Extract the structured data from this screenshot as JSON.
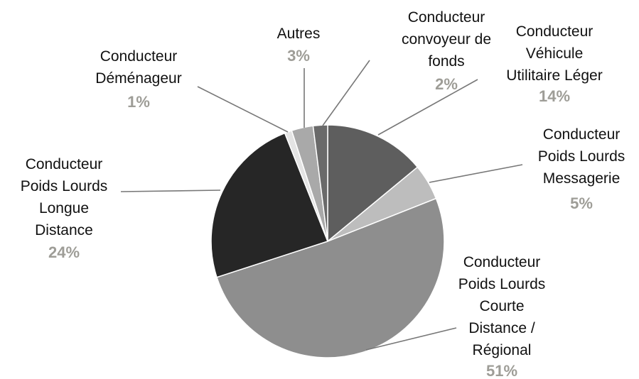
{
  "chart_data": {
    "type": "pie",
    "categories": [
      [
        "Conducteur",
        "Véhicule",
        "Utilitaire Léger"
      ],
      [
        "Conducteur",
        "Poids Lourds",
        "Messagerie"
      ],
      [
        "Conducteur",
        "Poids Lourds",
        "Courte",
        "Distance /",
        "Régional"
      ],
      [
        "Conducteur",
        "Poids Lourds",
        "Longue",
        "Distance"
      ],
      [
        "Conducteur",
        "Déménageur"
      ],
      [
        "Autres"
      ],
      [
        "Conducteur",
        "convoyeur de",
        "fonds"
      ]
    ],
    "values": [
      14,
      5,
      51,
      24,
      1,
      3,
      2
    ],
    "value_labels": [
      "14%",
      "5%",
      "51%",
      "24%",
      "1%",
      "3%",
      "2%"
    ],
    "colors": [
      "#5e5e5e",
      "#bdbdbd",
      "#8e8e8e",
      "#262626",
      "#e4e4e4",
      "#a9a9a9",
      "#6a6a6a"
    ]
  }
}
